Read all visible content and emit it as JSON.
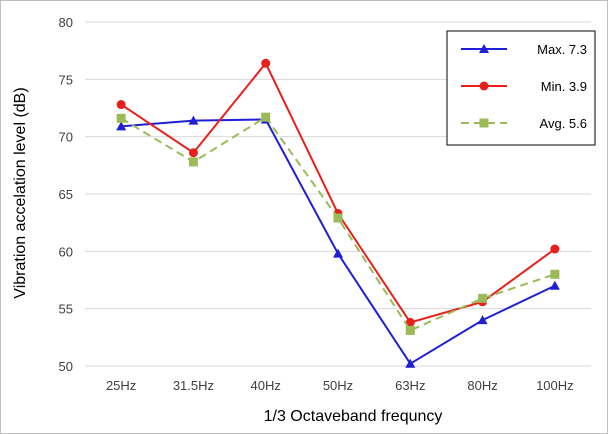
{
  "chart_data": {
    "type": "line",
    "title": "",
    "xlabel": "1/3 Octaveband frequncy",
    "ylabel": "Vibration accelation level (dB)",
    "categories": [
      "25Hz",
      "31.5Hz",
      "40Hz",
      "50Hz",
      "63Hz",
      "80Hz",
      "100Hz"
    ],
    "ylim": [
      50,
      80
    ],
    "yticks": [
      "50",
      "55",
      "60",
      "65",
      "70",
      "75",
      "80"
    ],
    "grid": true,
    "legend_position": "top-right",
    "series": [
      {
        "name": "Max. 7.3",
        "values": [
          70.9,
          71.4,
          71.5,
          59.8,
          50.2,
          54.0,
          57.0
        ],
        "color": "#1f1fd6",
        "marker": "triangle",
        "dash": "solid"
      },
      {
        "name": "Min. 3.9",
        "values": [
          72.8,
          68.6,
          76.4,
          63.3,
          53.8,
          55.6,
          60.2
        ],
        "color": "#e8201c",
        "marker": "circle",
        "dash": "solid"
      },
      {
        "name": "Avg. 5.6",
        "values": [
          71.6,
          67.8,
          71.7,
          62.9,
          53.1,
          55.9,
          58.0
        ],
        "color": "#9bbb59",
        "marker": "square",
        "dash": "dashed"
      }
    ]
  }
}
